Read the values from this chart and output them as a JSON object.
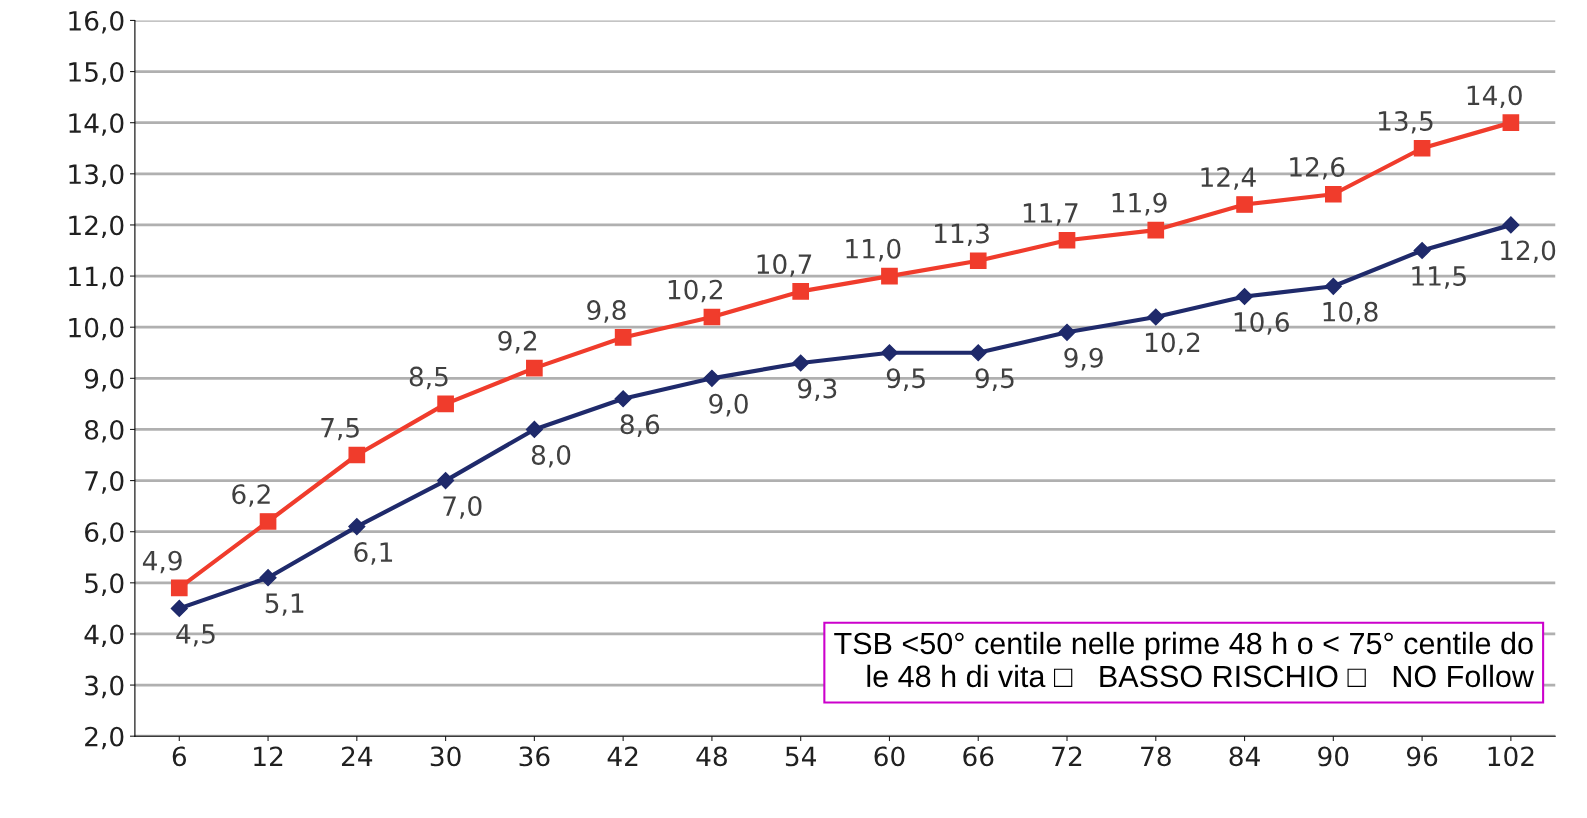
{
  "chart_data": {
    "type": "line",
    "categories": [
      "6",
      "12",
      "24",
      "30",
      "36",
      "42",
      "48",
      "54",
      "60",
      "66",
      "72",
      "78",
      "84",
      "90",
      "96",
      "102"
    ],
    "series": [
      {
        "color": "#f03c2c",
        "marker": "square",
        "values": [
          4.9,
          6.2,
          7.5,
          8.5,
          9.2,
          9.8,
          10.2,
          10.7,
          11.0,
          11.3,
          11.7,
          11.9,
          12.4,
          12.6,
          13.5,
          14.0
        ],
        "value_labels": [
          "4,9",
          "6,2",
          "7,5",
          "8,5",
          "9,2",
          "9,8",
          "10,2",
          "10,7",
          "11,0",
          "11,3",
          "11,7",
          "11,9",
          "12,4",
          "12,6",
          "13,5",
          "14,0"
        ]
      },
      {
        "color": "#1f2a6b",
        "marker": "diamond",
        "values": [
          4.5,
          5.1,
          6.1,
          7.0,
          8.0,
          8.6,
          9.0,
          9.3,
          9.5,
          9.5,
          9.9,
          10.2,
          10.6,
          10.8,
          11.5,
          12.0
        ],
        "value_labels": [
          "4,5",
          "5,1",
          "6,1",
          "7,0",
          "8,0",
          "8,6",
          "9,0",
          "9,3",
          "9,5",
          "9,5",
          "9,9",
          "10,2",
          "10,6",
          "10,8",
          "11,5",
          "12,0"
        ]
      }
    ],
    "ylim": [
      2,
      16
    ],
    "yticks": [
      {
        "value": 2,
        "label": "2,0"
      },
      {
        "value": 3,
        "label": "3,0"
      },
      {
        "value": 4,
        "label": "4,0"
      },
      {
        "value": 5,
        "label": "5,0"
      },
      {
        "value": 6,
        "label": "6,0"
      },
      {
        "value": 7,
        "label": "7,0"
      },
      {
        "value": 8,
        "label": "8,0"
      },
      {
        "value": 9,
        "label": "9,0"
      },
      {
        "value": 10,
        "label": "10,0"
      },
      {
        "value": 11,
        "label": "11,0"
      },
      {
        "value": 12,
        "label": "12,0"
      },
      {
        "value": 13,
        "label": "13,0"
      },
      {
        "value": 14,
        "label": "14,0"
      },
      {
        "value": 15,
        "label": "15,0"
      },
      {
        "value": 16,
        "label": "16,0"
      }
    ],
    "grid": "y",
    "annotations": [
      "TSB <50° centile nelle prime 48 h o < 75° centile do\nle 48 h di vita □   BASSO RISCHIO □   NO Follow"
    ]
  }
}
